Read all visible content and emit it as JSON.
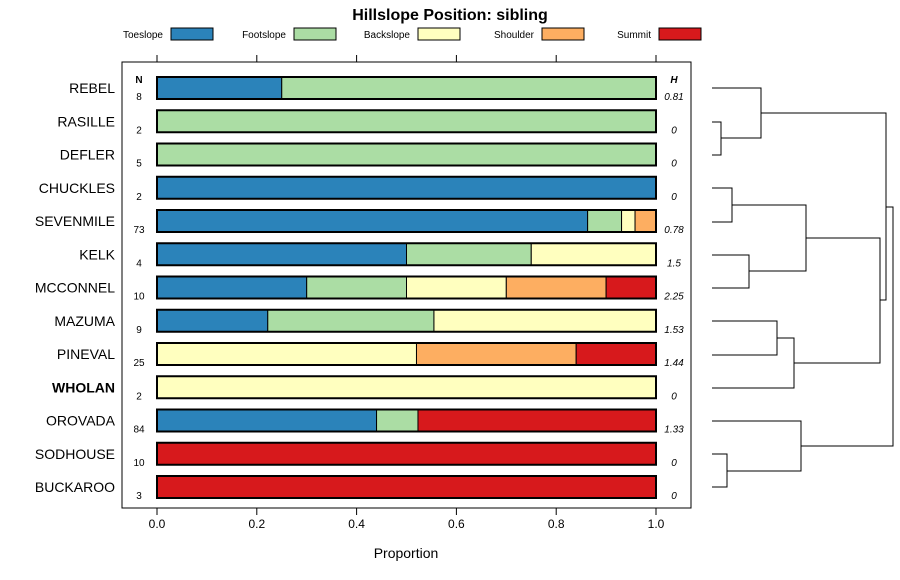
{
  "chart_data": {
    "type": "bar",
    "orientation": "horizontal-stacked",
    "title": "Hillslope Position: sibling",
    "xlabel": "Proportion",
    "xlim": [
      0,
      1
    ],
    "xticks": [
      "0.0",
      "0.2",
      "0.4",
      "0.6",
      "0.8",
      "1.0"
    ],
    "n_header": "N",
    "h_header": "H",
    "legend_placement": "top",
    "legend": [
      {
        "name": "Toeslope",
        "color": "#2b83ba"
      },
      {
        "name": "Footslope",
        "color": "#abdda4"
      },
      {
        "name": "Backslope",
        "color": "#ffffbf"
      },
      {
        "name": "Shoulder",
        "color": "#fdae61"
      },
      {
        "name": "Summit",
        "color": "#d7191c"
      }
    ],
    "rows": [
      {
        "name": "REBEL",
        "n": "8",
        "h": "0.81",
        "values": [
          0.25,
          0.75,
          0,
          0,
          0
        ]
      },
      {
        "name": "RASILLE",
        "n": "2",
        "h": "0",
        "values": [
          0,
          1,
          0,
          0,
          0
        ]
      },
      {
        "name": "DEFLER",
        "n": "5",
        "h": "0",
        "values": [
          0,
          1,
          0,
          0,
          0
        ]
      },
      {
        "name": "CHUCKLES",
        "n": "2",
        "h": "0",
        "values": [
          1,
          0,
          0,
          0,
          0
        ]
      },
      {
        "name": "SEVENMILE",
        "n": "73",
        "h": "0.78",
        "values": [
          0.863,
          0.068,
          0.027,
          0.041,
          0
        ]
      },
      {
        "name": "KELK",
        "n": "4",
        "h": "1.5",
        "values": [
          0.5,
          0.25,
          0.25,
          0,
          0
        ]
      },
      {
        "name": "MCCONNEL",
        "n": "10",
        "h": "2.25",
        "values": [
          0.3,
          0.2,
          0.2,
          0.2,
          0.1
        ]
      },
      {
        "name": "MAZUMA",
        "n": "9",
        "h": "1.53",
        "values": [
          0.222,
          0.333,
          0.444,
          0,
          0
        ]
      },
      {
        "name": "PINEVAL",
        "n": "25",
        "h": "1.44",
        "values": [
          0,
          0,
          0.52,
          0.32,
          0.16
        ]
      },
      {
        "name": "WHOLAN",
        "n": "2",
        "h": "0",
        "values": [
          0,
          0,
          1,
          0,
          0
        ],
        "bold": true
      },
      {
        "name": "OROVADA",
        "n": "84",
        "h": "1.33",
        "values": [
          0.44,
          0.083,
          0,
          0,
          0.476
        ]
      },
      {
        "name": "SODHOUSE",
        "n": "10",
        "h": "0",
        "values": [
          0,
          0,
          0,
          0,
          1
        ]
      },
      {
        "name": "BUCKAROO",
        "n": "3",
        "h": "0",
        "values": [
          0,
          0,
          0,
          0,
          1
        ]
      }
    ]
  }
}
